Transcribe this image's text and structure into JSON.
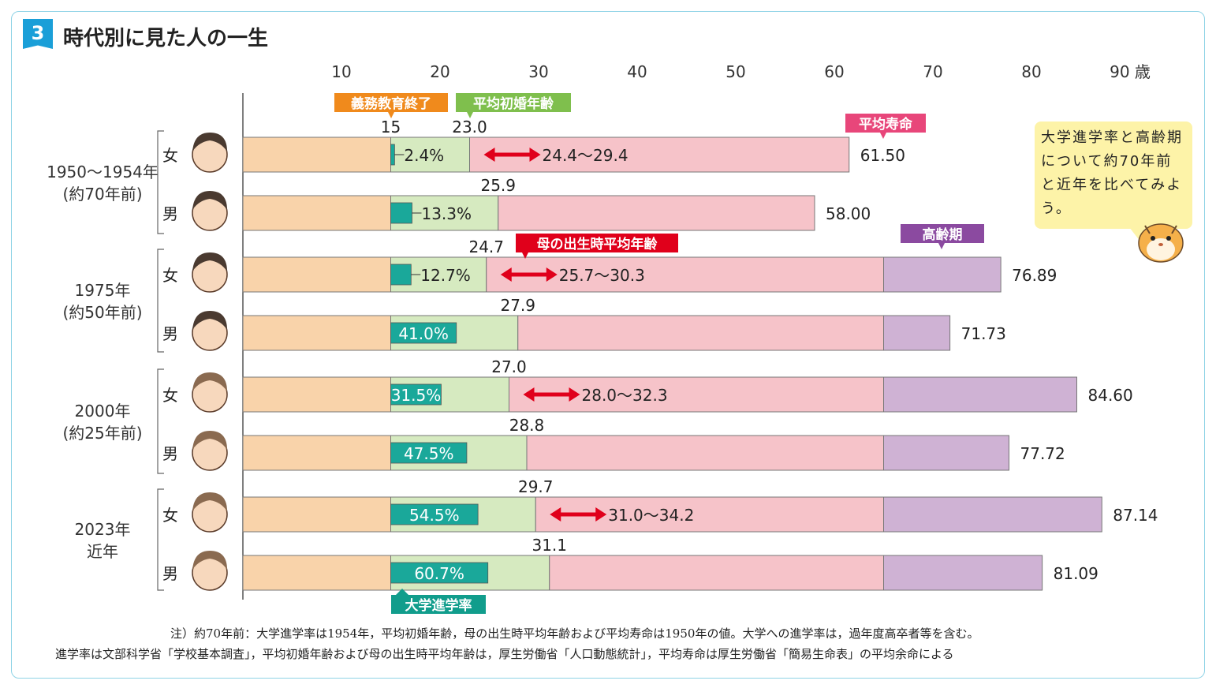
{
  "title_badge": "3",
  "title": "時代別に見た人の一生",
  "chart_data": {
    "type": "bar",
    "orientation": "horizontal-stacked",
    "x_ticks": [
      10,
      20,
      30,
      40,
      50,
      60,
      70,
      80,
      90
    ],
    "x_unit": "歳",
    "xlim": [
      0,
      90
    ],
    "groups": [
      {
        "label": "1950〜1954年",
        "sublabel": "(約70年前)"
      },
      {
        "label": "1975年",
        "sublabel": "(約50年前)"
      },
      {
        "label": "2000年",
        "sublabel": "(約25年前)"
      },
      {
        "label": "2023年",
        "sublabel": "近年"
      }
    ],
    "rows": [
      {
        "group": 0,
        "sex": "女",
        "compulsory_end": 15,
        "marriage_age": 23.0,
        "marriage_label": "23.0",
        "college_rate": 2.4,
        "college_label": "2.4%",
        "mother_birth": [
          24.4,
          29.4
        ],
        "mother_label": "24.4〜29.4",
        "senior_start": null,
        "life": 61.5,
        "life_label": "61.50"
      },
      {
        "group": 0,
        "sex": "男",
        "compulsory_end": 15,
        "marriage_age": 25.9,
        "marriage_label": "25.9",
        "college_rate": 13.3,
        "college_label": "13.3%",
        "mother_birth": null,
        "mother_label": "",
        "senior_start": null,
        "life": 58.0,
        "life_label": "58.00"
      },
      {
        "group": 1,
        "sex": "女",
        "compulsory_end": 15,
        "marriage_age": 24.7,
        "marriage_label": "24.7",
        "college_rate": 12.7,
        "college_label": "12.7%",
        "mother_birth": [
          25.7,
          30.3
        ],
        "mother_label": "25.7〜30.3",
        "senior_start": 65,
        "life": 76.89,
        "life_label": "76.89"
      },
      {
        "group": 1,
        "sex": "男",
        "compulsory_end": 15,
        "marriage_age": 27.9,
        "marriage_label": "27.9",
        "college_rate": 41.0,
        "college_label": "41.0%",
        "mother_birth": null,
        "mother_label": "",
        "senior_start": 65,
        "life": 71.73,
        "life_label": "71.73"
      },
      {
        "group": 2,
        "sex": "女",
        "compulsory_end": 15,
        "marriage_age": 27.0,
        "marriage_label": "27.0",
        "college_rate": 31.5,
        "college_label": "31.5%",
        "mother_birth": [
          28.0,
          32.3
        ],
        "mother_label": "28.0〜32.3",
        "senior_start": 65,
        "life": 84.6,
        "life_label": "84.60"
      },
      {
        "group": 2,
        "sex": "男",
        "compulsory_end": 15,
        "marriage_age": 28.8,
        "marriage_label": "28.8",
        "college_rate": 47.5,
        "college_label": "47.5%",
        "mother_birth": null,
        "mother_label": "",
        "senior_start": 65,
        "life": 77.72,
        "life_label": "77.72"
      },
      {
        "group": 3,
        "sex": "女",
        "compulsory_end": 15,
        "marriage_age": 29.7,
        "marriage_label": "29.7",
        "college_rate": 54.5,
        "college_label": "54.5%",
        "mother_birth": [
          31.0,
          34.2
        ],
        "mother_label": "31.0〜34.2",
        "senior_start": 65,
        "life": 87.14,
        "life_label": "87.14"
      },
      {
        "group": 3,
        "sex": "男",
        "compulsory_end": 15,
        "marriage_age": 31.1,
        "marriage_label": "31.1",
        "college_rate": 60.7,
        "college_label": "60.7%",
        "mother_birth": null,
        "mother_label": "",
        "senior_start": 65,
        "life": 81.09,
        "life_label": "81.09"
      }
    ],
    "callouts": {
      "compulsory": "義務教育終了",
      "marriage": "平均初婚年齢",
      "life": "平均寿命",
      "mother": "母の出生時平均年齢",
      "senior": "高齢期",
      "college": "大学進学率",
      "compulsory_value": "15"
    },
    "colors": {
      "child": "#f9d3aa",
      "youth": "#d6eac0",
      "adult": "#f6c3c9",
      "senior": "#cfb2d4",
      "college": "#1aa89a",
      "arrow": "#e0001b",
      "callout_compulsory": "#f08a1c",
      "callout_marriage": "#7fbf4d",
      "callout_life": "#e8467a",
      "callout_mother": "#e0001b",
      "callout_senior": "#8b4aa0",
      "callout_college": "#119d8c"
    }
  },
  "speech_bubble": "大学進学率と高齢期について約70年前と近年を比べてみよう。",
  "notes": [
    "注）約70年前：大学進学率は1954年，平均初婚年齢，母の出生時平均年齢および平均寿命は1950年の値。大学への進学率は，過年度高卒者等を含む。",
    "進学率は文部科学省「学校基本調査」，平均初婚年齢および母の出生時平均年齢は，厚生労働省「人口動態統計」，平均寿命は厚生労働省「簡易生命表」の平均余命による"
  ]
}
